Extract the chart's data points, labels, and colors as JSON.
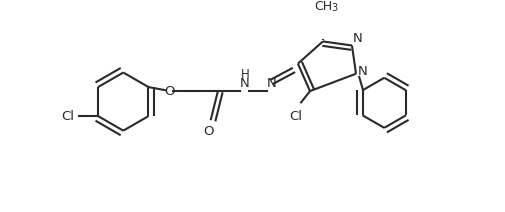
{
  "bg_color": "#ffffff",
  "line_color": "#2a2a2a",
  "line_width": 1.5,
  "font_size": 9.5,
  "figsize": [
    5.05,
    2.12
  ],
  "dpi": 100,
  "xlim": [
    0,
    10.1
  ],
  "ylim": [
    0,
    4.24
  ]
}
